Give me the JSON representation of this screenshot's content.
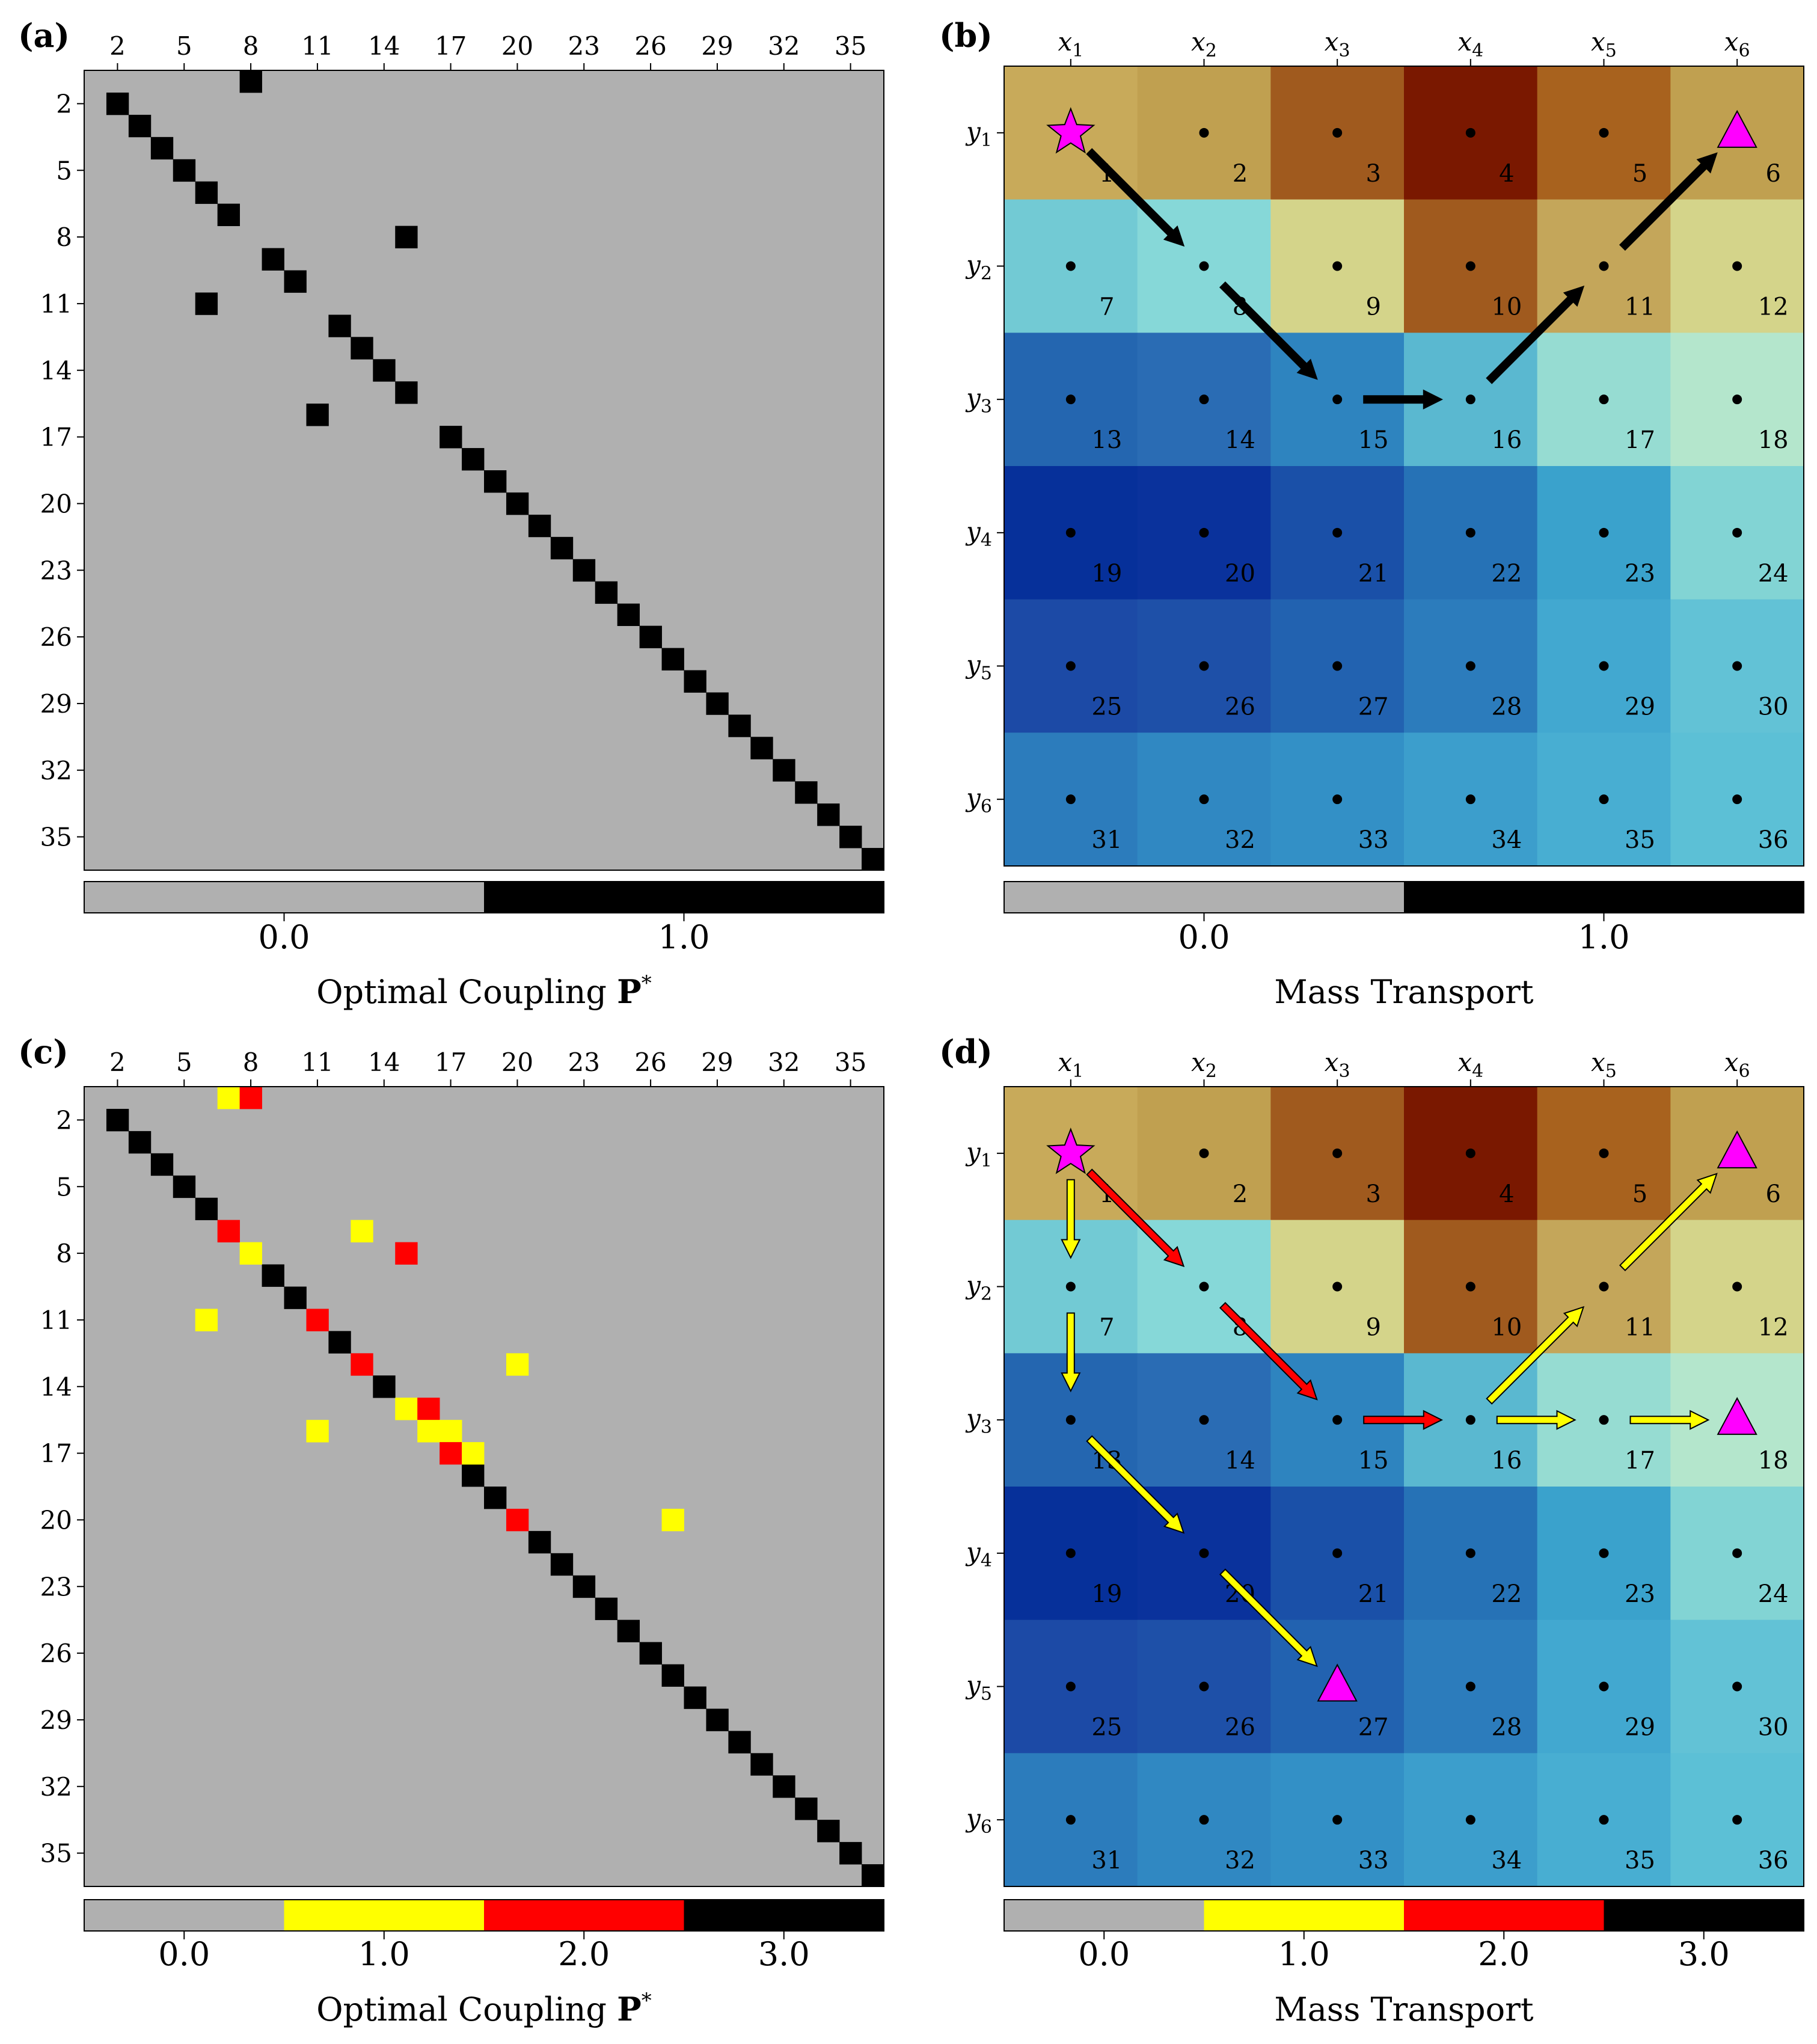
{
  "colors": {
    "gray": "#b0b0b0",
    "black": "#000000",
    "yellow": "#ffff00",
    "red": "#ff0000",
    "magenta": "#ff00ff",
    "arrow_black": "#000000"
  },
  "chart_data": [
    {
      "id": "a",
      "panel_label": "(a)",
      "type": "heatmap",
      "size": 36,
      "xticks": [
        2,
        5,
        8,
        11,
        14,
        17,
        20,
        23,
        26,
        29,
        32,
        35
      ],
      "yticks": [
        2,
        5,
        8,
        11,
        14,
        17,
        20,
        23,
        26,
        29,
        32,
        35
      ],
      "xlabel": "Optimal Coupling ",
      "xlabel_bold": "P",
      "xlabel_sup": "*",
      "default_value": 0,
      "cells": [
        {
          "row": 1,
          "col": 8,
          "value": 1
        },
        {
          "row": 8,
          "col": 15,
          "value": 1
        },
        {
          "row": 11,
          "col": 6,
          "value": 1
        },
        {
          "row": 16,
          "col": 11,
          "value": 1
        }
      ],
      "diagonal_value": 1,
      "diagonal_skip": [
        1,
        8,
        11,
        16
      ],
      "colorbar": {
        "colors": [
          "#b0b0b0",
          "#000000"
        ],
        "ticks": [
          0,
          1
        ],
        "tick_labels": [
          "0.0",
          "1.0"
        ]
      }
    },
    {
      "id": "b",
      "panel_label": "(b)",
      "type": "heatmap",
      "grid_rows": 6,
      "grid_cols": 6,
      "col_labels": [
        "x",
        "x",
        "x",
        "x",
        "x",
        "x"
      ],
      "col_subs": [
        "1",
        "2",
        "3",
        "4",
        "5",
        "6"
      ],
      "row_labels": [
        "y",
        "y",
        "y",
        "y",
        "y",
        "y"
      ],
      "row_subs": [
        "1",
        "2",
        "3",
        "4",
        "5",
        "6"
      ],
      "cell_numbers": [
        "1",
        "2",
        "3",
        "4",
        "5",
        "6",
        "7",
        "8",
        "9",
        "10",
        "11",
        "12",
        "13",
        "14",
        "15",
        "16",
        "17",
        "18",
        "19",
        "20",
        "21",
        "22",
        "23",
        "24",
        "25",
        "26",
        "27",
        "28",
        "29",
        "30",
        "31",
        "32",
        "33",
        "34",
        "35",
        "36"
      ],
      "cell_colors": [
        [
          "#c8aa5a",
          "#c0a050",
          "#a05a1e",
          "#7a1800",
          "#a8621e",
          "#c0a050"
        ],
        [
          "#72cad4",
          "#86d8d8",
          "#d4d48a",
          "#a05a1e",
          "#c4a65a",
          "#d4d48a"
        ],
        [
          "#2466b0",
          "#2a6cb4",
          "#2e84bf",
          "#5ab8d0",
          "#96dcd2",
          "#b4e6cc"
        ],
        [
          "#06309a",
          "#0a329c",
          "#1a50a8",
          "#2672b6",
          "#3aa2cc",
          "#82d4d4"
        ],
        [
          "#1c4aa6",
          "#1e50a8",
          "#2262b0",
          "#2c7cbc",
          "#42a8d0",
          "#62c2d6"
        ],
        [
          "#2c7cbc",
          "#3088c2",
          "#3390c6",
          "#3c9ecc",
          "#48aed2",
          "#5cc0d6"
        ]
      ],
      "markers": [
        {
          "cell": 1,
          "shape": "star"
        },
        {
          "cell": 6,
          "shape": "triangle"
        }
      ],
      "arrows": [
        {
          "from": 1,
          "to": 8,
          "color": "#000000"
        },
        {
          "from": 8,
          "to": 15,
          "color": "#000000"
        },
        {
          "from": 15,
          "to": 16,
          "color": "#000000"
        },
        {
          "from": 16,
          "to": 11,
          "color": "#000000"
        },
        {
          "from": 11,
          "to": 6,
          "color": "#000000"
        }
      ],
      "xlabel": "Mass Transport",
      "colorbar": {
        "colors": [
          "#b0b0b0",
          "#000000"
        ],
        "ticks": [
          0,
          1
        ],
        "tick_labels": [
          "0.0",
          "1.0"
        ]
      }
    },
    {
      "id": "c",
      "panel_label": "(c)",
      "type": "heatmap",
      "size": 36,
      "xticks": [
        2,
        5,
        8,
        11,
        14,
        17,
        20,
        23,
        26,
        29,
        32,
        35
      ],
      "yticks": [
        2,
        5,
        8,
        11,
        14,
        17,
        20,
        23,
        26,
        29,
        32,
        35
      ],
      "xlabel": "Optimal Coupling ",
      "xlabel_bold": "P",
      "xlabel_sup": "*",
      "default_value": 0,
      "cells": [
        {
          "row": 1,
          "col": 7,
          "value": 1
        },
        {
          "row": 1,
          "col": 8,
          "value": 2
        },
        {
          "row": 7,
          "col": 7,
          "value": 2
        },
        {
          "row": 7,
          "col": 13,
          "value": 1
        },
        {
          "row": 8,
          "col": 8,
          "value": 1
        },
        {
          "row": 8,
          "col": 15,
          "value": 2
        },
        {
          "row": 11,
          "col": 6,
          "value": 1
        },
        {
          "row": 11,
          "col": 11,
          "value": 2
        },
        {
          "row": 13,
          "col": 13,
          "value": 2
        },
        {
          "row": 13,
          "col": 20,
          "value": 1
        },
        {
          "row": 15,
          "col": 15,
          "value": 1
        },
        {
          "row": 15,
          "col": 16,
          "value": 2
        },
        {
          "row": 16,
          "col": 11,
          "value": 1
        },
        {
          "row": 16,
          "col": 16,
          "value": 1
        },
        {
          "row": 16,
          "col": 17,
          "value": 1
        },
        {
          "row": 17,
          "col": 17,
          "value": 2
        },
        {
          "row": 17,
          "col": 18,
          "value": 1
        },
        {
          "row": 20,
          "col": 20,
          "value": 2
        },
        {
          "row": 20,
          "col": 27,
          "value": 1
        }
      ],
      "diagonal_value": 3,
      "diagonal_skip": [
        1,
        7,
        8,
        11,
        13,
        15,
        16,
        17,
        20
      ],
      "colorbar": {
        "colors": [
          "#b0b0b0",
          "#ffff00",
          "#ff0000",
          "#000000"
        ],
        "ticks": [
          0,
          1,
          2,
          3
        ],
        "tick_labels": [
          "0.0",
          "1.0",
          "2.0",
          "3.0"
        ]
      }
    },
    {
      "id": "d",
      "panel_label": "(d)",
      "type": "heatmap",
      "grid_rows": 6,
      "grid_cols": 6,
      "col_labels": [
        "x",
        "x",
        "x",
        "x",
        "x",
        "x"
      ],
      "col_subs": [
        "1",
        "2",
        "3",
        "4",
        "5",
        "6"
      ],
      "row_labels": [
        "y",
        "y",
        "y",
        "y",
        "y",
        "y"
      ],
      "row_subs": [
        "1",
        "2",
        "3",
        "4",
        "5",
        "6"
      ],
      "cell_numbers": [
        "1",
        "2",
        "3",
        "4",
        "5",
        "6",
        "7",
        "8",
        "9",
        "10",
        "11",
        "12",
        "13",
        "14",
        "15",
        "16",
        "17",
        "18",
        "19",
        "20",
        "21",
        "22",
        "23",
        "24",
        "25",
        "26",
        "27",
        "28",
        "29",
        "30",
        "31",
        "32",
        "33",
        "34",
        "35",
        "36"
      ],
      "cell_colors": [
        [
          "#c8aa5a",
          "#c0a050",
          "#a05a1e",
          "#7a1800",
          "#a8621e",
          "#c0a050"
        ],
        [
          "#72cad4",
          "#86d8d8",
          "#d4d48a",
          "#a05a1e",
          "#c4a65a",
          "#d4d48a"
        ],
        [
          "#2466b0",
          "#2a6cb4",
          "#2e84bf",
          "#5ab8d0",
          "#96dcd2",
          "#b4e6cc"
        ],
        [
          "#06309a",
          "#0a329c",
          "#1a50a8",
          "#2672b6",
          "#3aa2cc",
          "#82d4d4"
        ],
        [
          "#1c4aa6",
          "#1e50a8",
          "#2262b0",
          "#2c7cbc",
          "#42a8d0",
          "#62c2d6"
        ],
        [
          "#2c7cbc",
          "#3088c2",
          "#3390c6",
          "#3c9ecc",
          "#48aed2",
          "#5cc0d6"
        ]
      ],
      "markers": [
        {
          "cell": 1,
          "shape": "star"
        },
        {
          "cell": 6,
          "shape": "triangle"
        },
        {
          "cell": 18,
          "shape": "triangle"
        },
        {
          "cell": 27,
          "shape": "triangle"
        }
      ],
      "arrows": [
        {
          "from": 1,
          "to": 8,
          "color": "#ff0000"
        },
        {
          "from": 8,
          "to": 15,
          "color": "#ff0000"
        },
        {
          "from": 15,
          "to": 16,
          "color": "#ff0000"
        },
        {
          "from": 1,
          "to": 7,
          "color": "#ffff00"
        },
        {
          "from": 7,
          "to": 13,
          "color": "#ffff00"
        },
        {
          "from": 13,
          "to": 20,
          "color": "#ffff00"
        },
        {
          "from": 20,
          "to": 27,
          "color": "#ffff00"
        },
        {
          "from": 16,
          "to": 11,
          "color": "#ffff00"
        },
        {
          "from": 11,
          "to": 6,
          "color": "#ffff00"
        },
        {
          "from": 16,
          "to": 17,
          "color": "#ffff00"
        },
        {
          "from": 17,
          "to": 18,
          "color": "#ffff00"
        }
      ],
      "xlabel": "Mass Transport",
      "colorbar": {
        "colors": [
          "#b0b0b0",
          "#ffff00",
          "#ff0000",
          "#000000"
        ],
        "ticks": [
          0,
          1,
          2,
          3
        ],
        "tick_labels": [
          "0.0",
          "1.0",
          "2.0",
          "3.0"
        ]
      }
    }
  ]
}
